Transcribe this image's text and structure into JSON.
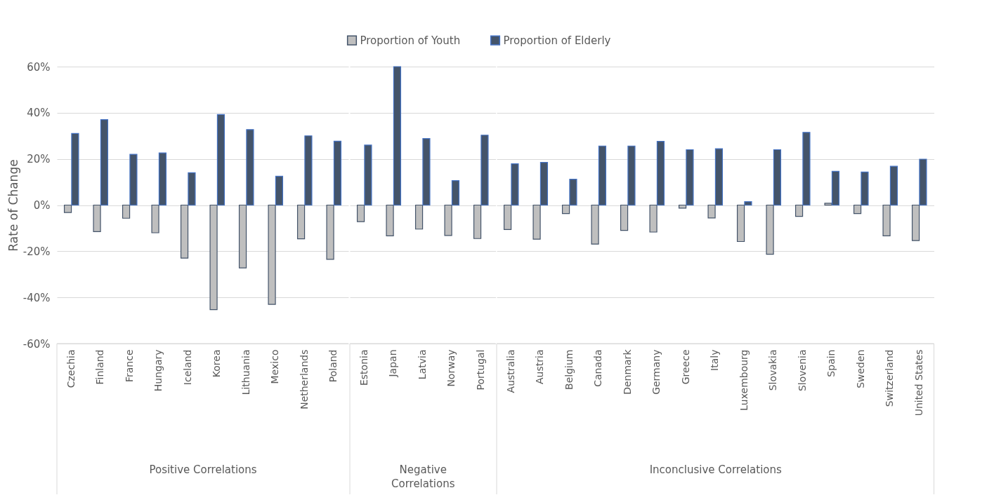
{
  "chart_data": [
    {
      "type": "bar",
      "categories": [
        "Czechia",
        "Finland",
        "France",
        "Hungary",
        "Iceland",
        "Korea",
        "Lithuania",
        "Mexico",
        "Netherlands",
        "Poland"
      ],
      "series": [
        {
          "name": "Proportion of Youth",
          "color": "#bfbfbf",
          "values": [
            -3.2,
            -11.5,
            -5.7,
            -12,
            -23,
            -45.3,
            -27.2,
            -43,
            -14.6,
            -23.5
          ]
        },
        {
          "name": "Proportion of Elderly",
          "color": "#44546a",
          "values": [
            31,
            37,
            22,
            22.6,
            14,
            39.2,
            32.7,
            12.5,
            30,
            27.7
          ]
        }
      ],
      "xlabel": "Positive Correlations",
      "ylabel": "Rate of Change",
      "ylim": [
        -60,
        60
      ],
      "yticks": [
        {
          "value": -60,
          "label": "-60%"
        },
        {
          "value": -40,
          "label": "-40%"
        },
        {
          "value": -20,
          "label": "-20%"
        },
        {
          "value": 0,
          "label": "0%"
        },
        {
          "value": 20,
          "label": "20%"
        },
        {
          "value": 40,
          "label": "40%"
        },
        {
          "value": 60,
          "label": "60%"
        }
      ],
      "grid": "y",
      "legend": "top"
    },
    {
      "type": "bar",
      "categories": [
        "Estonia",
        "Japan",
        "Latvia",
        "Norway",
        "Portugal"
      ],
      "series": [
        {
          "name": "Proportion of Youth",
          "color": "#bfbfbf",
          "values": [
            -7.2,
            -13.3,
            -10.4,
            -13.2,
            -14.5
          ]
        },
        {
          "name": "Proportion of Elderly",
          "color": "#44546a",
          "values": [
            26,
            60,
            28.8,
            10.6,
            30.3
          ]
        }
      ],
      "xlabel": "Negative Correlations",
      "ylim": [
        -60,
        60
      ],
      "yticks": [
        {
          "value": -60,
          "label": null
        },
        {
          "value": -40,
          "label": null
        },
        {
          "value": -20,
          "label": null
        },
        {
          "value": 0,
          "label": null
        },
        {
          "value": 20,
          "label": null
        },
        {
          "value": 40,
          "label": null
        },
        {
          "value": 60,
          "label": null
        }
      ],
      "grid": "y",
      "tick_labels": "x"
    },
    {
      "type": "bar",
      "categories": [
        "Australia",
        "Austria",
        "Belgium",
        "Canada",
        "Denmark",
        "Germany",
        "Greece",
        "Italy",
        "Luxembourg",
        "Slovakia",
        "Slovenia",
        "Spain",
        "Sweden",
        "Switzerland",
        "United States"
      ],
      "series": [
        {
          "name": "Proportion of Youth",
          "color": "#bfbfbf",
          "values": [
            -10.6,
            -14.8,
            -3.7,
            -16.9,
            -11,
            -11.7,
            -1.3,
            -5.6,
            -15.8,
            -21.3,
            -4.9,
            0.8,
            -3.7,
            -13.3,
            -15.4
          ]
        },
        {
          "name": "Proportion of Elderly",
          "color": "#44546a",
          "values": [
            17.9,
            18.5,
            11.2,
            25.6,
            25.6,
            27.6,
            24,
            24.4,
            1.5,
            24,
            31.5,
            14.6,
            14.3,
            16.8,
            19.9
          ]
        }
      ],
      "xlabel": "Inconclusive Correlations",
      "ylim": [
        -60,
        60
      ],
      "yticks": [
        {
          "value": -60,
          "label": null
        },
        {
          "value": -40,
          "label": null
        },
        {
          "value": -20,
          "label": null
        },
        {
          "value": 0,
          "label": null
        },
        {
          "value": 20,
          "label": null
        },
        {
          "value": 40,
          "label": null
        },
        {
          "value": 60,
          "label": null
        }
      ],
      "grid": "y",
      "tick_labels": "x"
    }
  ]
}
